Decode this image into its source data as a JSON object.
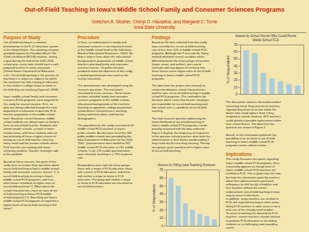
{
  "title": "Out-of-Field Teaching in Iowa's Middle School Family and Consumer Sciences Programs",
  "subtitle": [
    "Gretchen A. Mosher, Cheryl O. Hausafus, and Margaret C. Torrie",
    "Iowa State University"
  ],
  "annotations": [
    {
      "title": "Purpose of Study",
      "text": "Out-of-field teaching is a common\nphenomenon in the K-12 education system\nin the United States. This alarming situation\nprovided impetus for President Bush's No\nChild Left Behind (NCLB) initiative, setting\na goal that by the end of the 2005-2006\nschool year, every state should have a well-\nprepared teacher in every classroom\n(United States Department of Education,\nn.d.). Out-of-field teaching is the practice of\nteaching in a subject or subjects for which\nthe instructor has little training or education\nor has neither a college major or minor in\nthe field they are teaching (Ingersoll, 1999).\n\nIowa's middle school family and consumer\nsciences (FCS) programs were targeted for\nthis study for several reasons. First, no\ndata was being collected through the state\ndepartment of education to describe FCS\nteacher preparation at the middle school\nlevel. Based on current literature, middle\nschool students are almost twice as likely to\nhave an out-of-field teacher. Students who\nattend smaller schools, schools in lower\nincome areas, and those students who are\nlow-achieving all have a higher chance of\nhaving an out-of-field teacher. Iowa has\nmany small and low income schools where\nFCS teachers are working with lower-\nachieving students. Teacher shortages add\nto this problem.\n\nBased on these reasons, the goals of this\nstudy were to answer three questions about\nout-of-field teaching in Iowa's middle school\nfamily and consumer sciences classes. 1. Is\nout-of-field teaching occurring in Iowa's\nmiddle school FCS programs, and if so,\nwhat factors contribute to higher rates of\nout-of-field teaching? 2. What effects do\nschool characteristics have on rates of out-\nof-field teaching in Iowa's FCS middle\nschool programs? 3. How likely are Iowa's\nmiddle school FCS programs to experience\nhigher levels of out-of-field teaching in the\nfuture?"
    },
    {
      "title": "Procedure",
      "text": "In Iowa, an endorsement in family and\nconsumer sciences is not required to teach\nat the middle school level in the field (Iowa\nBoard of Educational Examiners, 2002). No\ndata is kept in Iowa about the educational\nbackground or preparation of middle school\nteachers who lead family and consumer\nsciences classes. To gather the data\nneeded to meet the objectives of this study,\na mailed questionnaire was used as the\nsurvey instrument.\n\nThe questionnaire was developed using the\nresearch questions. The instrument\nconsisted of seven sections. These seven\nsections included: family and consumer\nsciences programs at the middle schools,\neducational backgrounds of the teachers,\nteaching assignments, college preparation,\nschool district characteristics, teaching\nhistory and future plans, and teacher\ndemographics.\n\nThe population for this study consisted of all\nmiddle school FCS teachers in Iowa's\npublic schools. An electronic list of the 300\npublic middle schools was provided by the\nIowa Department of Education for the 2001-\n2002. Questionnaires were mailed to 292\nmiddle school FCS educators at 241 middle\nschools. In all, 176 usable questionnaires\nwere returned, resulting in a 72% response\nrate.\n\nRespondents were split into three groups:\nthose with a major in FCS education, those\nwith a minor in FCS education, and those\nwith neither a major or minor in FCS\neducation. The group with neither a major\nor minor in FCS education are classified as\nout-of-field teachers."
    },
    {
      "title": "Findings",
      "text": "Based on the data collected from this study,\nIowa currently has an out-of-field teaching\nrate of less than 10% in middle school FCS\nprograms. Although the F-test and the Tukey\nmethod identified several variables which\ndiffered between the three groups of teachers\n(major, minor, and neither), one cannot\nconclude with any degree of certainty that\nthese factors cause higher rates of out-of-field\nteaching in Iowa's middle school FCS\nprograms.\n\nThe data from this project also showed no\nconnection between school characteristics\nand the rates of out-of-field teaching in middle\nschool FCS programs. This contradicts the\nliterature which states that teacher shortages\nare responsible for out-of-field teaching and\nthat school size is a predictor of out-of-field\nteaching.\n\nThe final research question addressing the\nfuture likelihood of out-of-field teaching in\nIowa's middle school FCS programs can be\npartially answered with the data collected.\nFigure 1 displays the frequency of responses\nto the question asking teachers what tools the\nadministration in their district would employ if\nthey could not fill a teaching vacancy. The top\ntwo options given would result in higher rates\nof out-of-field teaching."
    },
    {
      "text": "The descriptive statistics illustrated another\ninteresting trend. Sixty percent of teachers\nreported they knew of no one within the\ndistrict who could replace them if they\nresigned or retired; however, 40% teachers\ncould identify a possible replacement within\ntheir school district. The data from this\nquestion are shown in Figure 2.\n\nBased, on the information gathered, the\npossibility of an increase in out-of-field\nteaching in Iowa's middle school FCS\nprograms seems almost certain."
    },
    {
      "title": "Implications",
      "text": "This study illustrates two points regarding\nIowa's middle school FCS programs. First,\nit presently appears as though most of\nIowa's middle school FCS teachers are\ncertified in FCS. This is good news for now,\nbut from the information given by teachers\nabout their administrations' perceived\nwillingness to shift faculty schedules and\nhire teachers without the correct\nendorsement, out-of-field teaching in Iowa\nmay increase in the future.\nIn addition, many teachers are certified in\nFCS, but reported teaching in other areas.\nUsing FCS teachers in other areas is not a\nwise use of the already small number.\nTo assist in meeting the demand for FCS\nteachers, current teachers should continue\nto promote FCS education to secondary\nstudents as a challenging and rewarding\ncareer."
    }
  ],
  "chart_data": [
    {
      "type": "bar",
      "title": "Actions by School District Who Could Permit\nMiddle School FCS",
      "categories": [
        null,
        null,
        null,
        null,
        null,
        null,
        null
      ],
      "values": [
        62,
        58,
        30,
        22,
        18,
        14,
        12
      ],
      "color": "#aaccdd",
      "ylabel": "% of Respondents",
      "ylim": [
        0,
        70
      ],
      "yticks": [
        0,
        10,
        20,
        30,
        40,
        50,
        60,
        70
      ]
    },
    {
      "type": "bar",
      "title": "Actions for Filling Iowa Teaching Positions",
      "categories": [
        null,
        null,
        null,
        null,
        null,
        null,
        null
      ],
      "values": [
        60,
        50,
        28,
        20,
        15,
        12,
        8
      ],
      "color": "#aaccdd",
      "ylabel": "% of Respondents",
      "ylim": [
        0,
        70
      ],
      "yticks": [
        0,
        10,
        20,
        30,
        40,
        50,
        60,
        70
      ]
    }
  ]
}
